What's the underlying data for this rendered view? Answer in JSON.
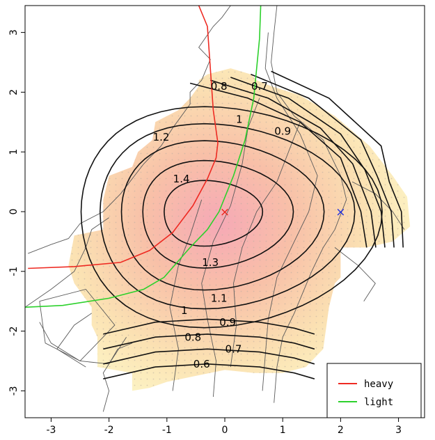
{
  "chart_data": {
    "type": "contour",
    "xlim": [
      -3.45,
      3.45
    ],
    "ylim": [
      -3.45,
      3.45
    ],
    "x_ticks": [
      -3,
      -2,
      -1,
      0,
      1,
      2,
      3
    ],
    "y_ticks": [
      -3,
      -2,
      -1,
      0,
      1,
      2,
      3
    ],
    "contour_levels": [
      0.6,
      0.7,
      0.8,
      0.9,
      1,
      1.1,
      1.2,
      1.3,
      1.4
    ],
    "contour_labels": [
      {
        "text": "1.4",
        "x": -0.75,
        "y": 0.5
      },
      {
        "text": "1.3",
        "x": -0.25,
        "y": -0.9
      },
      {
        "text": "1.2",
        "x": -1.1,
        "y": 1.2
      },
      {
        "text": "1.1",
        "x": -0.1,
        "y": -1.5
      },
      {
        "text": "1",
        "x": -0.7,
        "y": -1.7
      },
      {
        "text": "0.9",
        "x": 0.05,
        "y": -1.9
      },
      {
        "text": "0.8",
        "x": -0.55,
        "y": -2.15
      },
      {
        "text": "0.7",
        "x": 0.15,
        "y": -2.35
      },
      {
        "text": "0.6",
        "x": -0.4,
        "y": -2.6
      },
      {
        "text": "0.8",
        "x": -0.1,
        "y": 2.05
      },
      {
        "text": "0.7",
        "x": 0.6,
        "y": 2.05
      },
      {
        "text": "1",
        "x": 0.25,
        "y": 1.5
      },
      {
        "text": "0.9",
        "x": 1.0,
        "y": 1.3
      }
    ],
    "markers": [
      {
        "label": "×",
        "x": 0.0,
        "y": 0.0,
        "color": "#e8261c"
      },
      {
        "label": "×",
        "x": 2.0,
        "y": 0.0,
        "color": "#1f2ee0"
      }
    ],
    "series": [
      {
        "name": "heavy",
        "color": "#ee2a22",
        "x": [
          -3.4,
          -2.6,
          -1.8,
          -1.3,
          -0.9,
          -0.55,
          -0.3,
          -0.15,
          -0.12,
          -0.2,
          -0.25,
          -0.3,
          -0.45
        ],
        "y": [
          -0.95,
          -0.92,
          -0.85,
          -0.65,
          -0.35,
          0.1,
          0.55,
          0.9,
          1.15,
          1.7,
          2.4,
          3.1,
          3.45
        ]
      },
      {
        "name": "light",
        "color": "#2cd12c",
        "x": [
          -3.45,
          -2.8,
          -2.0,
          -1.4,
          -1.05,
          -0.6,
          -0.3,
          -0.1,
          0.15,
          0.35,
          0.5,
          0.6,
          0.62
        ],
        "y": [
          -1.6,
          -1.57,
          -1.45,
          -1.3,
          -1.1,
          -0.6,
          -0.3,
          0.0,
          0.6,
          1.2,
          1.9,
          2.9,
          3.45
        ]
      }
    ],
    "legend": {
      "position": "bottom-right"
    }
  }
}
